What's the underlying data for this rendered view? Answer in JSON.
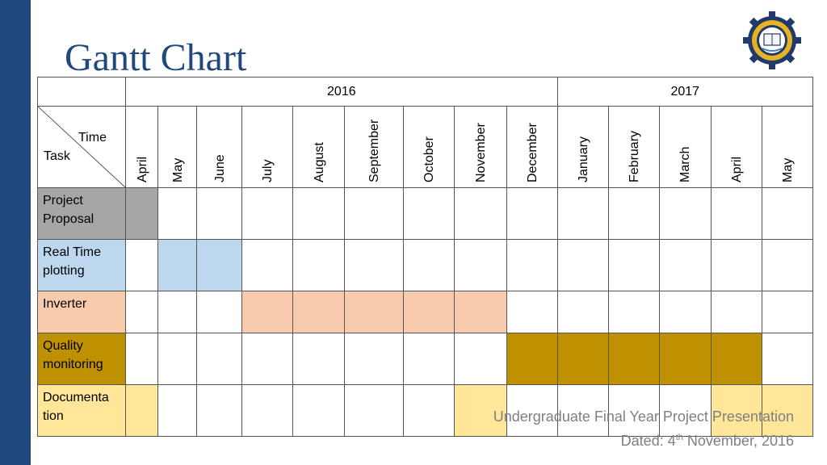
{
  "title": "Gantt Chart",
  "colors": {
    "left_bar": "#1f497d",
    "title": "#1f497d",
    "grid": "#555555",
    "project_proposal": "#a6a6a6",
    "real_time_plotting": "#bdd7ee",
    "inverter": "#f8cbad",
    "quality_monitoring": "#bf9000",
    "documentation": "#ffe699"
  },
  "logo": {
    "icon": "university-seal-icon"
  },
  "table": {
    "corner": {
      "time": "Time",
      "task": "Task"
    },
    "years": [
      {
        "label": "2016",
        "span": 9
      },
      {
        "label": "2017",
        "span": 5
      }
    ],
    "months": [
      "April",
      "May",
      "June",
      "July",
      "August",
      "September",
      "October",
      "November",
      "December",
      "January",
      "February",
      "March",
      "April",
      "May"
    ],
    "tasks": [
      {
        "name": "Project Proposal",
        "color": "#a6a6a6",
        "active": [
          0
        ]
      },
      {
        "name": "Real Time plotting",
        "color": "#bdd7ee",
        "active": [
          1,
          2
        ]
      },
      {
        "name": "Inverter",
        "color": "#f8cbad",
        "active": [
          3,
          4,
          5,
          6,
          7
        ]
      },
      {
        "name": "Quality monitoring",
        "color": "#bf9000",
        "active": [
          8,
          9,
          10,
          11,
          12
        ]
      },
      {
        "name": "Documenta tion",
        "color": "#ffe699",
        "active": [
          0,
          7,
          12,
          13
        ]
      }
    ]
  },
  "footer": {
    "line1": "Undergraduate Final Year Project Presentation",
    "line2_prefix": "Dated: 4",
    "line2_sup": "th",
    "line2_suffix": " November, 2016"
  }
}
